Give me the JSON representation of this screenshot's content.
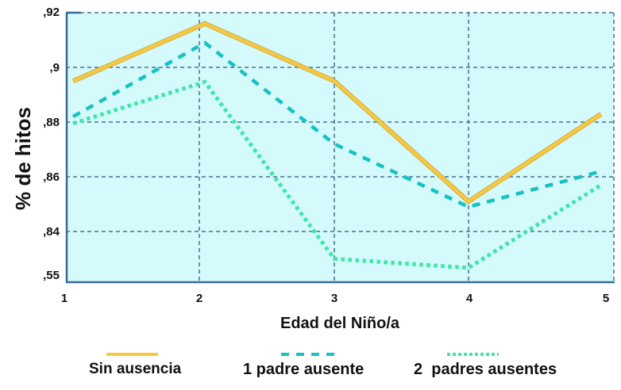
{
  "chart_data": {
    "type": "line",
    "title": "",
    "xlabel": "Edad del Niño/a",
    "ylabel": "% de hitos",
    "categories": [
      "1",
      "2",
      "3",
      "4",
      "5"
    ],
    "x": [
      1,
      2,
      3,
      4,
      5
    ],
    "y_ticks": [
      ",92",
      ",9",
      ",88",
      ",86",
      ",84",
      ",55"
    ],
    "y_tick_values": [
      0.92,
      0.9,
      0.88,
      0.86,
      0.84,
      0.82
    ],
    "y_axis_break_note": "bottom tick labeled ,55 (axis break)",
    "ylim": [
      0.82,
      0.92
    ],
    "grid": true,
    "legend_position": "bottom",
    "plot_background": "#d4fafc",
    "series": [
      {
        "name": "Sin ausencia",
        "style": "solid",
        "color": "#f5c842",
        "values": [
          0.895,
          0.916,
          0.895,
          0.851,
          0.883
        ]
      },
      {
        "name": "1 padre ausente",
        "style": "dashed",
        "color": "#17c2c4",
        "values": [
          0.882,
          0.909,
          0.872,
          0.849,
          0.862
        ]
      },
      {
        "name": "2 padres ausentes",
        "style": "dotted",
        "color": "#3ee6a8",
        "values": [
          0.8795,
          0.8947,
          0.83,
          0.8267,
          0.857
        ]
      }
    ]
  },
  "legend": {
    "items": [
      {
        "label": "Sin ausencia"
      },
      {
        "label": "1 padre ausente"
      },
      {
        "label": "2  padres ausentes"
      }
    ]
  }
}
